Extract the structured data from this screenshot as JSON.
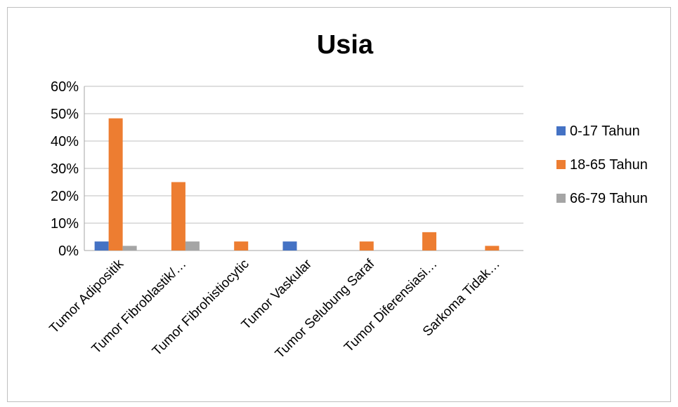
{
  "chart_data": {
    "type": "bar",
    "title": "Usia",
    "xlabel": "",
    "ylabel": "",
    "ylim": [
      0,
      60
    ],
    "y_ticks": [
      "0%",
      "10%",
      "20%",
      "30%",
      "40%",
      "50%",
      "60%"
    ],
    "grid": true,
    "legend_position": "right",
    "categories": [
      "Tumor Adipositik",
      "Tumor Fibroblastik/…",
      "Tumor Fibrohistiocytic",
      "Tumor Vaskular",
      "Tumor Selubung Saraf",
      "Tumor Diferensiasi…",
      "Sarkoma Tidak…"
    ],
    "series": [
      {
        "name": "0-17 Tahun",
        "color": "#4472c4",
        "values": [
          3.3,
          0,
          0,
          3.3,
          0,
          0,
          0
        ]
      },
      {
        "name": "18-65 Tahun",
        "color": "#ed7d31",
        "values": [
          48.3,
          25,
          3.3,
          0,
          3.3,
          6.7,
          1.7
        ]
      },
      {
        "name": "66-79 Tahun",
        "color": "#a5a5a5",
        "values": [
          1.7,
          3.3,
          0,
          0,
          0,
          0,
          0
        ]
      }
    ]
  }
}
